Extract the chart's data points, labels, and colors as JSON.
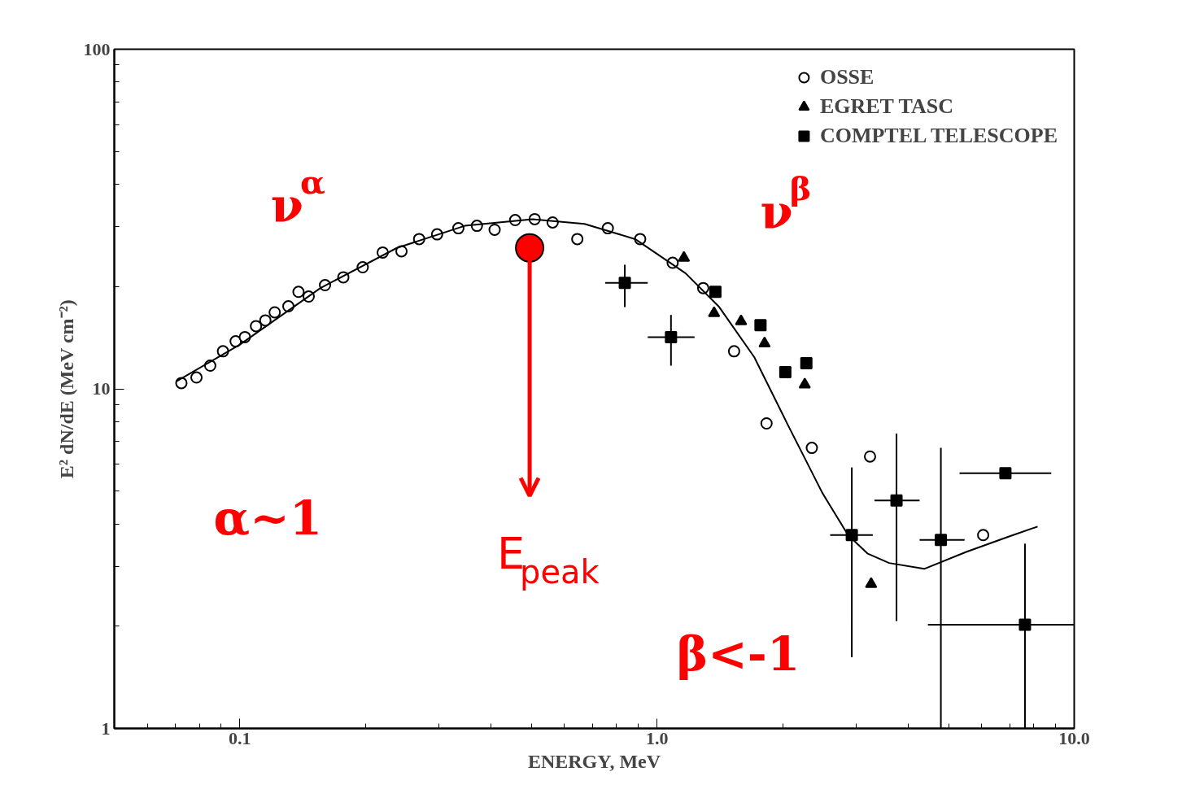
{
  "chart_data": {
    "type": "scatter",
    "xlabel": "ENERGY, MeV",
    "ylabel": "E² dN/dE (MeV cm⁻²)",
    "log": "xy",
    "grid": false,
    "legend": "top right",
    "xlim": [
      0.05,
      10
    ],
    "ylim": [
      1,
      100
    ],
    "xticks": [
      {
        "value": 0.1,
        "label": "0.1"
      },
      {
        "value": 1,
        "label": "1.0"
      },
      {
        "value": 10,
        "label": "10.0"
      }
    ],
    "yticks": [
      1,
      10,
      100
    ],
    "series": [
      {
        "name": "OSSE",
        "color": "#000000",
        "marker": "circle",
        "x": [
          0.0724,
          0.0787,
          0.0849,
          0.0911,
          0.0977,
          0.1028,
          0.1093,
          0.1151,
          0.1212,
          0.1307,
          0.1382,
          0.1462,
          0.16,
          0.177,
          0.197,
          0.22,
          0.244,
          0.269,
          0.297,
          0.334,
          0.37,
          0.408,
          0.457,
          0.509,
          0.562,
          0.644,
          0.762,
          0.911,
          1.09,
          1.29,
          1.53,
          1.83,
          2.35,
          3.24,
          6.05
        ],
        "values": [
          10.4,
          10.8,
          11.7,
          12.9,
          13.8,
          14.2,
          15.3,
          15.9,
          16.8,
          17.5,
          19.3,
          18.7,
          20.2,
          21.3,
          22.8,
          25.2,
          25.4,
          27.6,
          28.5,
          29.7,
          30.2,
          29.4,
          31.4,
          31.6,
          30.9,
          27.6,
          29.7,
          27.6,
          23.5,
          19.8,
          12.9,
          7.91,
          6.7,
          6.32,
          3.71
        ]
      },
      {
        "name": "EGRET TASC",
        "color": "#000000",
        "marker": "triangle",
        "x": [
          1.16,
          1.37,
          1.59,
          1.81,
          2.26,
          3.26
        ],
        "values": [
          24.3,
          16.7,
          15.8,
          13.6,
          10.3,
          2.66
        ]
      },
      {
        "name": "COMPTEL TELESCOPE",
        "color": "#000000",
        "marker": "square",
        "x": [
          0.837,
          1.08,
          1.38,
          1.77,
          2.03,
          2.28,
          2.93,
          3.75,
          4.79,
          6.84,
          7.62
        ],
        "values": [
          20.5,
          14.2,
          19.3,
          15.4,
          11.2,
          11.9,
          3.71,
          4.69,
          3.59,
          5.64,
          2.02
        ],
        "errors": [
          [
            17.4,
            23.2
          ],
          [
            11.7,
            16.5
          ],
          null,
          null,
          null,
          null,
          [
            1.62,
            5.87
          ],
          [
            2.07,
            7.38
          ],
          [
            1.0,
            6.7
          ],
          null,
          [
            1.0,
            3.5
          ]
        ],
        "xerrors": [
          [
            0.751,
            0.95
          ],
          [
            0.95,
            1.23
          ],
          null,
          null,
          null,
          null,
          [
            2.6,
            3.29
          ],
          [
            3.32,
            4.26
          ],
          [
            4.26,
            5.46
          ],
          [
            5.31,
            8.81
          ],
          [
            4.46,
            10
          ]
        ]
      },
      {
        "type": "line",
        "color": "#000000",
        "x": [
          0.0703,
          0.1,
          0.156,
          0.238,
          0.346,
          0.503,
          0.67,
          0.886,
          1.17,
          1.41,
          1.71,
          2.06,
          2.49,
          2.87,
          3.2,
          3.6,
          4.37,
          5.51,
          6.96,
          8.17
        ],
        "values": [
          10.5,
          13.5,
          19.8,
          26.0,
          30.2,
          31.6,
          30.6,
          27.6,
          21.9,
          17.4,
          12.4,
          7.82,
          4.94,
          3.71,
          3.27,
          3.07,
          2.95,
          3.31,
          3.67,
          3.93
        ]
      }
    ],
    "annotations": [
      "ν$^{α}$",
      "ν$^{β}$",
      "α~1",
      "β<-1",
      {
        "text": "E$_{peak}$",
        "x": 0.495,
        "y": 26.0
      }
    ]
  }
}
